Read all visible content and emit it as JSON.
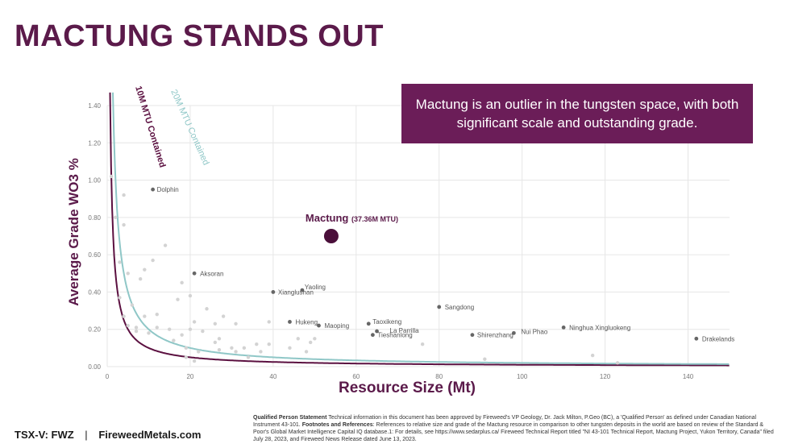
{
  "page": {
    "title": "MACTUNG STANDS OUT",
    "callout": "Mactung is an outlier in the tungsten space, with both significant scale and outstanding grade.",
    "footer": {
      "ticker": "TSX-V:  FWZ",
      "separator": "|",
      "website": "FireweedMetals.com"
    },
    "footnote": {
      "qp_heading": "Qualified Person Statement",
      "qp_text": " Technical information in this document has been approved by Fireweed's VP Geology, Dr. Jack Milton, P.Geo (BC), a 'Qualified Person' as defined under Canadian National Instrument 43-101. ",
      "refs_heading": "Footnotes and References",
      "refs_text": ": References to relative size and grade of the Mactung resource in comparison to other tungsten deposits in the world are based on review of the Standard & Poor's Global Market Intelligence Capital IQ database.1: For details, see https://www.sedarplus.ca/ Fireweed Technical Report titled \"NI 43-101 Technical Report, Mactung Project, Yukon Territory, Canada\" filed July 28, 2023, and Fireweed News Release dated June 13, 2023."
    }
  },
  "colors": {
    "title": "#5b1a4a",
    "callout_bg": "#6b1d58",
    "curve_10m": "#5b1040",
    "curve_20m": "#8fc7c7",
    "highlight": "#4a0f3a",
    "labeled_point": "#666666",
    "unlabeled_point": "#d3d3d3",
    "grid": "#e6e6e6"
  },
  "chart_data": {
    "type": "scatter",
    "xlabel": "Resource Size (Mt)",
    "ylabel": "Average Grade WO3 %",
    "xlim": [
      0,
      150
    ],
    "ylim": [
      0,
      1.4
    ],
    "xticks": [
      0,
      20,
      40,
      60,
      80,
      100,
      120,
      140
    ],
    "yticks": [
      "0.00",
      "0.20",
      "0.40",
      "0.60",
      "0.80",
      "1.00",
      "1.20",
      "1.40"
    ],
    "grid": true,
    "curves": [
      {
        "name": "10M MTU Contained",
        "contained_mtu": 10
      },
      {
        "name": "20M MTU Contained",
        "contained_mtu": 20
      }
    ],
    "highlight": {
      "name": "Mactung",
      "note": "(37.36M MTU)",
      "x": 54,
      "y": 0.7
    },
    "labeled_points": [
      {
        "name": "Dolphin",
        "x": 11,
        "y": 0.95
      },
      {
        "name": "Aksoran",
        "x": 21,
        "y": 0.5
      },
      {
        "name": "Xianglushan",
        "x": 40,
        "y": 0.4
      },
      {
        "name": "Yaoling",
        "x": 47,
        "y": 0.41
      },
      {
        "name": "Hukeng",
        "x": 44,
        "y": 0.24
      },
      {
        "name": "Maoping",
        "x": 51,
        "y": 0.22
      },
      {
        "name": "Taoxikeng",
        "x": 63,
        "y": 0.23
      },
      {
        "name": "La Parrilla",
        "x": 65,
        "y": 0.19
      },
      {
        "name": "Tieshanlong",
        "x": 64,
        "y": 0.17
      },
      {
        "name": "Sangdong",
        "x": 80,
        "y": 0.32
      },
      {
        "name": "Shirenzhang",
        "x": 88,
        "y": 0.17
      },
      {
        "name": "Nui Phao",
        "x": 98,
        "y": 0.18
      },
      {
        "name": "Ninghua Xingluokeng",
        "x": 110,
        "y": 0.21
      },
      {
        "name": "Drakelands",
        "x": 142,
        "y": 0.15
      }
    ],
    "unlabeled_points": [
      {
        "x": 1,
        "y": 1.02
      },
      {
        "x": 2,
        "y": 0.8
      },
      {
        "x": 3,
        "y": 0.56
      },
      {
        "x": 3,
        "y": 0.37
      },
      {
        "x": 4,
        "y": 0.92
      },
      {
        "x": 4,
        "y": 0.76
      },
      {
        "x": 4,
        "y": 0.27
      },
      {
        "x": 5,
        "y": 0.5
      },
      {
        "x": 5,
        "y": 0.22
      },
      {
        "x": 6,
        "y": 0.33
      },
      {
        "x": 7,
        "y": 0.19
      },
      {
        "x": 7,
        "y": 0.21
      },
      {
        "x": 8,
        "y": 0.47
      },
      {
        "x": 9,
        "y": 0.52
      },
      {
        "x": 9,
        "y": 0.27
      },
      {
        "x": 10,
        "y": 0.18
      },
      {
        "x": 11,
        "y": 0.57
      },
      {
        "x": 12,
        "y": 0.28
      },
      {
        "x": 12,
        "y": 0.21
      },
      {
        "x": 14,
        "y": 0.65
      },
      {
        "x": 15,
        "y": 0.2
      },
      {
        "x": 16,
        "y": 0.14
      },
      {
        "x": 17,
        "y": 0.36
      },
      {
        "x": 18,
        "y": 0.45
      },
      {
        "x": 18,
        "y": 0.17
      },
      {
        "x": 19,
        "y": 0.1
      },
      {
        "x": 19,
        "y": 0.05
      },
      {
        "x": 20,
        "y": 0.2
      },
      {
        "x": 20,
        "y": 0.38
      },
      {
        "x": 21,
        "y": 0.24
      },
      {
        "x": 21,
        "y": 0.03
      },
      {
        "x": 22,
        "y": 0.08
      },
      {
        "x": 23,
        "y": 0.19
      },
      {
        "x": 24,
        "y": 0.31
      },
      {
        "x": 26,
        "y": 0.23
      },
      {
        "x": 26,
        "y": 0.13
      },
      {
        "x": 27,
        "y": 0.15
      },
      {
        "x": 27,
        "y": 0.09
      },
      {
        "x": 28,
        "y": 0.27
      },
      {
        "x": 30,
        "y": 0.1
      },
      {
        "x": 31,
        "y": 0.08
      },
      {
        "x": 31,
        "y": 0.23
      },
      {
        "x": 33,
        "y": 0.1
      },
      {
        "x": 34,
        "y": 0.05
      },
      {
        "x": 36,
        "y": 0.12
      },
      {
        "x": 37,
        "y": 0.08
      },
      {
        "x": 39,
        "y": 0.12
      },
      {
        "x": 39,
        "y": 0.24
      },
      {
        "x": 44,
        "y": 0.1
      },
      {
        "x": 46,
        "y": 0.15
      },
      {
        "x": 48,
        "y": 0.08
      },
      {
        "x": 49,
        "y": 0.13
      },
      {
        "x": 50,
        "y": 0.15
      },
      {
        "x": 76,
        "y": 0.12
      },
      {
        "x": 91,
        "y": 0.04
      },
      {
        "x": 117,
        "y": 0.06
      },
      {
        "x": 123,
        "y": 0.02
      }
    ]
  }
}
